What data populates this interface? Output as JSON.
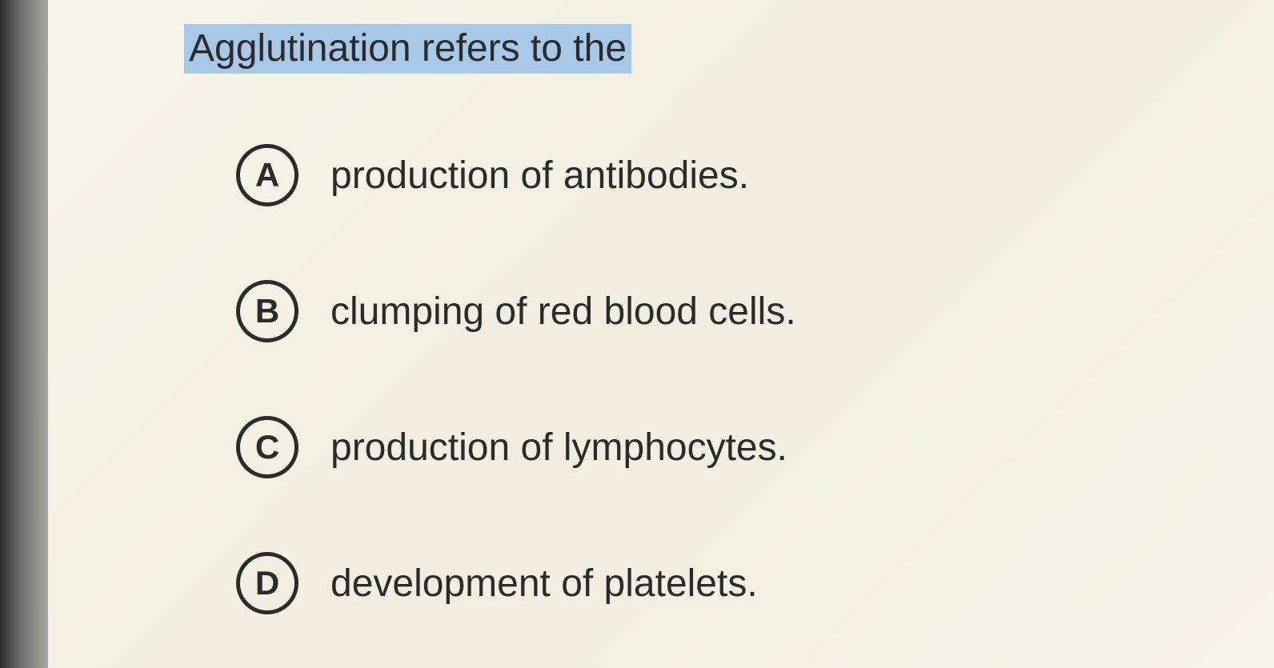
{
  "question": {
    "text": "Agglutination refers to the",
    "highlight_color": "#a8c8e8",
    "text_color": "#2b2b2b",
    "font_size": 48
  },
  "options": [
    {
      "letter": "A",
      "text": "production of antibodies."
    },
    {
      "letter": "B",
      "text": "clumping of red blood cells."
    },
    {
      "letter": "C",
      "text": "production of lymphocytes."
    },
    {
      "letter": "D",
      "text": "development of platelets."
    }
  ],
  "styling": {
    "background_color": "#f5f2e8",
    "circle_border_color": "#2b2b2b",
    "circle_border_width": 5,
    "circle_diameter": 78,
    "option_text_color": "#2b2b2b",
    "option_font_size": 48,
    "letter_font_weight": 700
  }
}
